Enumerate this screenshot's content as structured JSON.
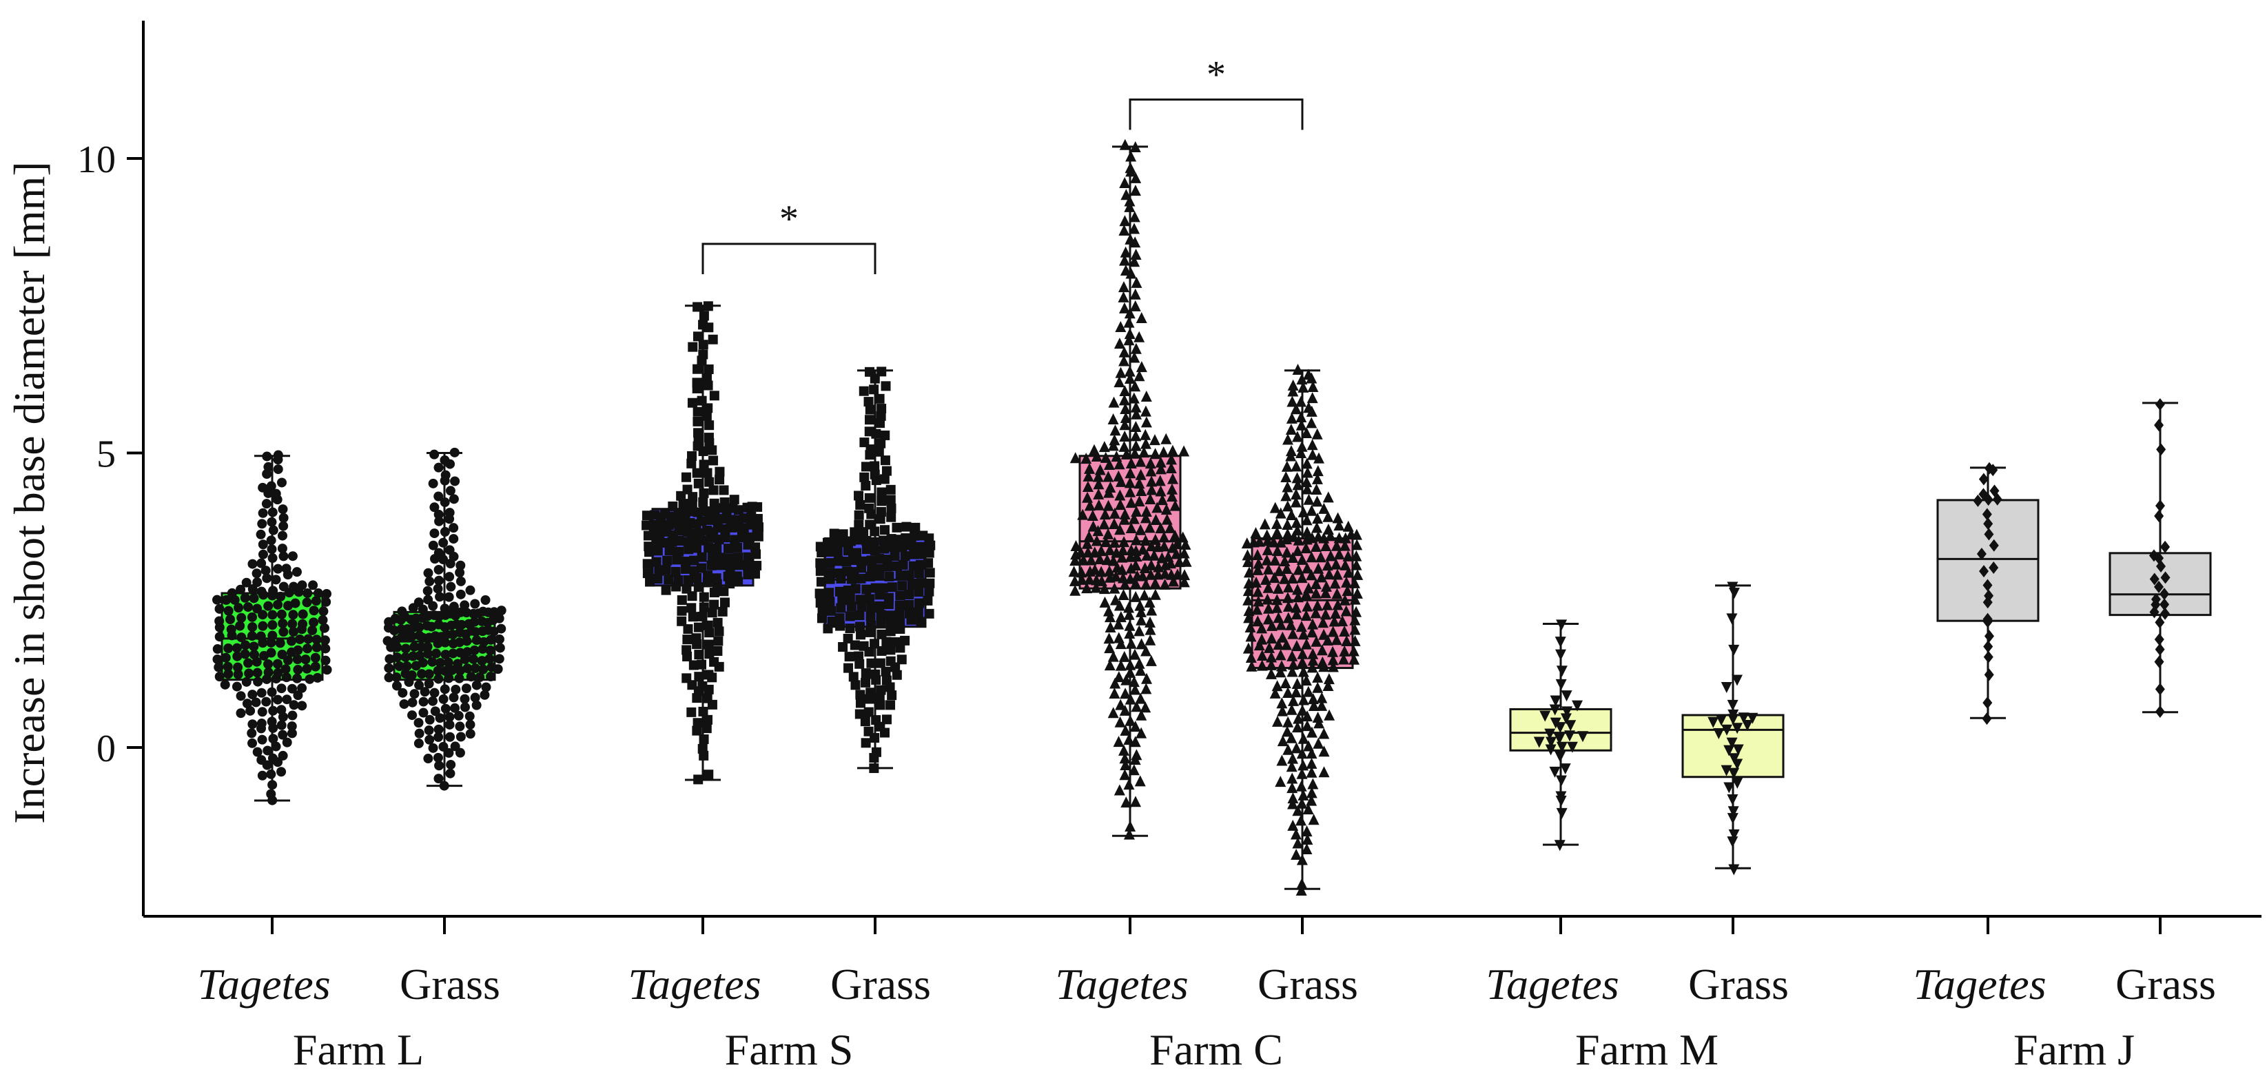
{
  "chart_data": {
    "type": "box",
    "title": "",
    "ylabel": "Increase in shoot base diameter [mm]",
    "ylim": [
      -2.9,
      12.2
    ],
    "yticks": [
      "0",
      "5",
      "10"
    ],
    "ytick_values": [
      0,
      5,
      10
    ],
    "groups": [
      {
        "name": "Farm L",
        "series": [
          {
            "name": "Tagetes",
            "italic": true,
            "color": "#33ee33",
            "marker": "circle",
            "n": 220,
            "min": -0.9,
            "q1": 1.15,
            "median": 1.85,
            "q3": 2.62,
            "max": 4.95
          },
          {
            "name": "Grass",
            "italic": false,
            "color": "#33ee33",
            "marker": "circle",
            "n": 240,
            "min": -0.65,
            "q1": 1.15,
            "median": 1.8,
            "q3": 2.3,
            "max": 5.0
          }
        ]
      },
      {
        "name": "Farm S",
        "series": [
          {
            "name": "Tagetes",
            "italic": true,
            "color": "#4d4dee",
            "marker": "square",
            "n": 240,
            "min": -0.55,
            "q1": 2.75,
            "median": 3.5,
            "q3": 4.05,
            "max": 7.5
          },
          {
            "name": "Grass",
            "italic": false,
            "color": "#4d4dee",
            "marker": "square",
            "n": 240,
            "min": -0.35,
            "q1": 2.05,
            "median": 2.85,
            "q3": 3.55,
            "max": 6.4
          }
        ]
      },
      {
        "name": "Farm C",
        "series": [
          {
            "name": "Tagetes",
            "italic": true,
            "color": "#f08cb4",
            "marker": "triangle-up",
            "n": 330,
            "min": -1.5,
            "q1": 2.7,
            "median": 3.5,
            "q3": 4.95,
            "max": 10.2
          },
          {
            "name": "Grass",
            "italic": false,
            "color": "#f08cb4",
            "marker": "triangle-up",
            "n": 330,
            "min": -2.4,
            "q1": 1.35,
            "median": 2.5,
            "q3": 3.55,
            "max": 6.4
          }
        ]
      },
      {
        "name": "Farm M",
        "series": [
          {
            "name": "Tagetes",
            "italic": true,
            "color": "#f2fbb4",
            "marker": "triangle-down",
            "n": 32,
            "min": -1.65,
            "q1": -0.05,
            "median": 0.25,
            "q3": 0.65,
            "max": 2.1
          },
          {
            "name": "Grass",
            "italic": false,
            "color": "#f2fbb4",
            "marker": "triangle-down",
            "n": 32,
            "min": -2.05,
            "q1": -0.5,
            "median": 0.3,
            "q3": 0.55,
            "max": 2.75
          }
        ]
      },
      {
        "name": "Farm J",
        "series": [
          {
            "name": "Tagetes",
            "italic": true,
            "color": "#d4d4d4",
            "marker": "diamond",
            "n": 26,
            "min": 0.5,
            "q1": 2.15,
            "median": 3.2,
            "q3": 4.2,
            "max": 4.75
          },
          {
            "name": "Grass",
            "italic": false,
            "color": "#d4d4d4",
            "marker": "diamond",
            "n": 24,
            "min": 0.6,
            "q1": 2.25,
            "median": 2.6,
            "q3": 3.3,
            "max": 5.85
          }
        ]
      }
    ],
    "significance": [
      {
        "group": "Farm S",
        "label": "*",
        "y": 8.55
      },
      {
        "group": "Farm C",
        "label": "*",
        "y": 11.0
      }
    ]
  }
}
